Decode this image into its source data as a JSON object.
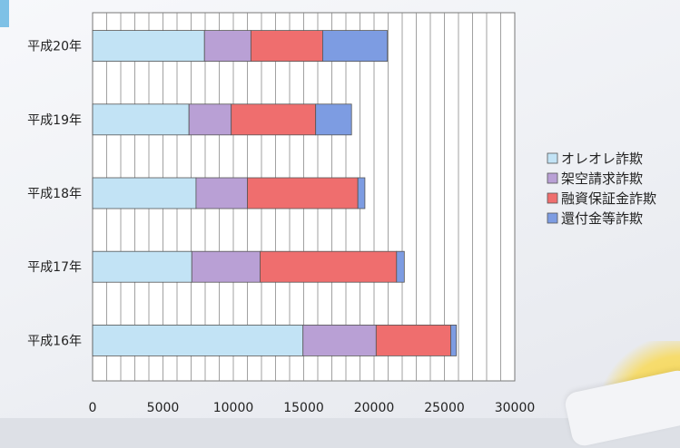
{
  "chart_data": {
    "type": "bar",
    "orientation": "horizontal",
    "stacked": true,
    "categories": [
      "平成20年",
      "平成19年",
      "平成18年",
      "平成17年",
      "平成16年"
    ],
    "series": [
      {
        "name": "オレオレ詐欺",
        "color": "#c2e3f5",
        "values": [
          7950,
          6850,
          7350,
          7050,
          14950
        ]
      },
      {
        "name": "架空請求詐欺",
        "color": "#b9a0d5",
        "values": [
          3300,
          3000,
          3650,
          4850,
          5200
        ]
      },
      {
        "name": "融資保証金詐欺",
        "color": "#ef6e6e",
        "values": [
          5100,
          6000,
          7850,
          9700,
          5300
        ]
      },
      {
        "name": "還付金等詐欺",
        "color": "#7d9ce2",
        "values": [
          4600,
          2550,
          500,
          550,
          400
        ]
      }
    ],
    "xlim": [
      0,
      30000
    ],
    "xticks": [
      "0",
      "5000",
      "10000",
      "15000",
      "20000",
      "25000",
      "30000"
    ],
    "grid": "vertical",
    "legend": "right"
  }
}
